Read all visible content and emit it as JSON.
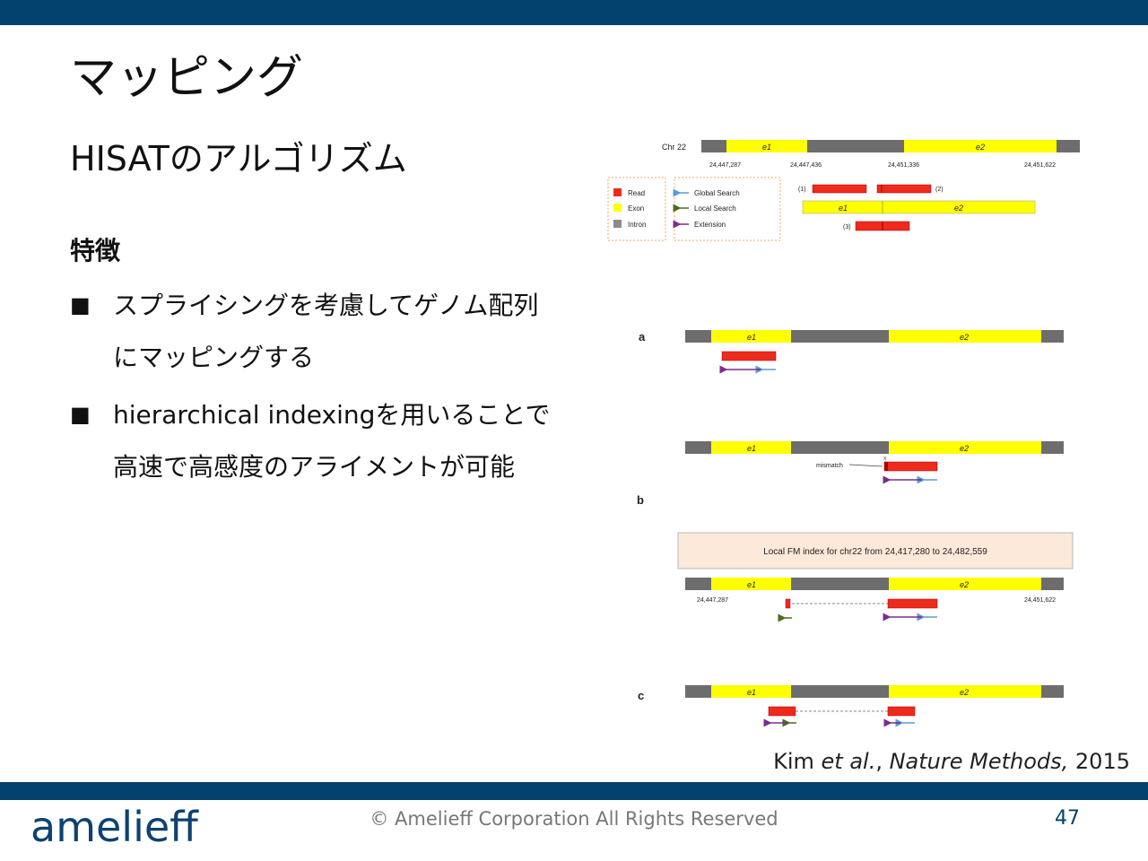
{
  "slide": {
    "title": "マッピング",
    "subtitle": "HISATのアルゴリズム",
    "feature_heading": "特徴",
    "bullets": [
      {
        "line1": "スプライシングを考慮してゲノム配列",
        "line2": "にマッピングする"
      },
      {
        "line1": "hierarchical indexingを用いることで",
        "line2": "高速で高感度のアライメントが可能"
      }
    ],
    "bullet_symbol": "■",
    "citation": {
      "author": "Kim ",
      "etal": "et al.",
      "journal": "Nature Methods,",
      "year": " 2015",
      "sep": ", "
    }
  },
  "footer": {
    "logo": "amelieff",
    "copyright": "© Amelieff Corporation All Rights Reserved",
    "page_number": "47"
  },
  "figure": {
    "chr_label": "Chr 22",
    "exon_labels": {
      "e1": "e1",
      "e2": "e2"
    },
    "top_coords": [
      "24,447,287",
      "24,447,436",
      "24,451,336",
      "24,451,622"
    ],
    "read_labels": [
      "(1)",
      "(2)",
      "(3)"
    ],
    "legend": {
      "read": "Read",
      "exon": "Exon",
      "intron": "Intron",
      "global": "Global Search",
      "local": "Local Search",
      "extension": "Extension"
    },
    "panel_labels": {
      "a": "a",
      "b": "b",
      "c": "c"
    },
    "mismatch_label": "mismatch",
    "mismatch_mark": "x",
    "fm_index_text": "Local FM index for chr22 from 24,417,280 to 24,482,559",
    "fm_coords": [
      "24,447,287",
      "24,451,622"
    ]
  },
  "colors": {
    "brand": "#03416f",
    "exon": "#ffff00",
    "intron": "#6d6d6d",
    "read": "#ee2a1b",
    "global_arrow": "#5b9bd5",
    "local_arrow": "#4c6a1e",
    "extension_arrow": "#7b2d8e",
    "fm_box": "#fbe9da"
  }
}
